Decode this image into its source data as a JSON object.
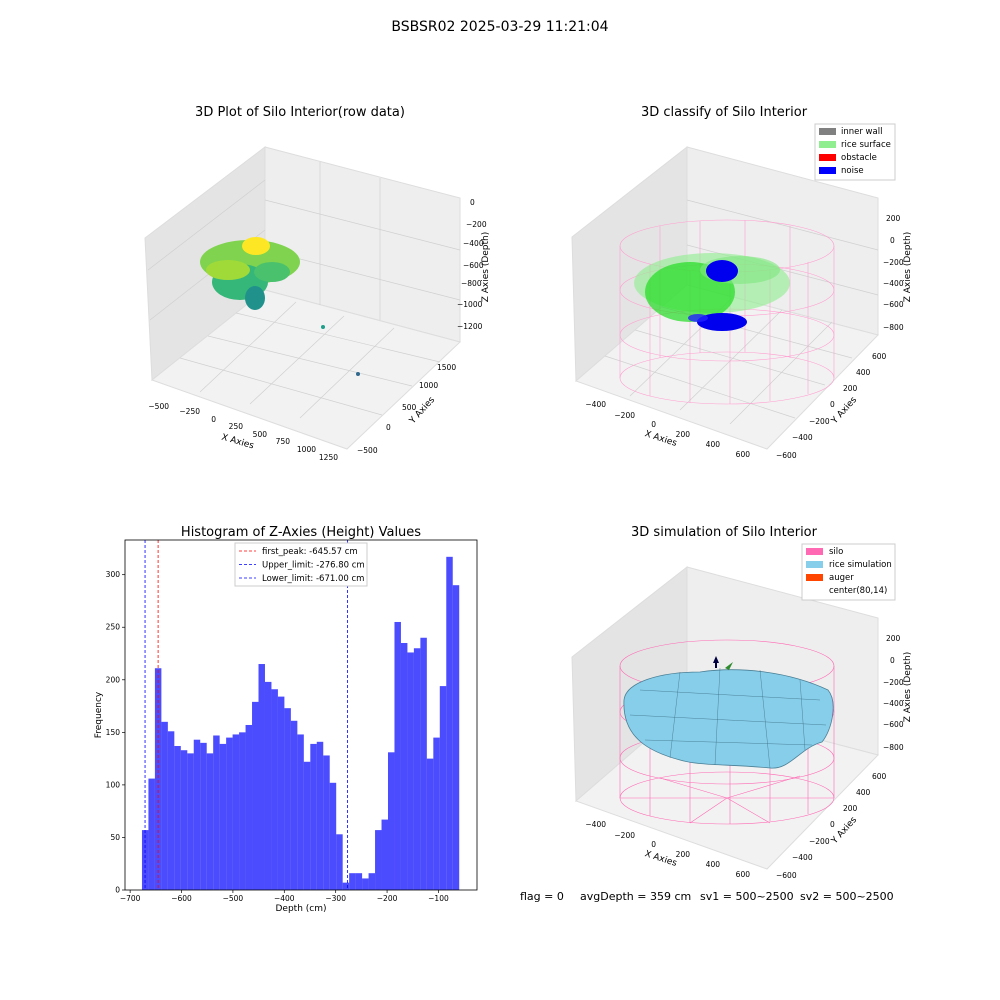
{
  "figure": {
    "suptitle": "BSBSR02 2025-03-29 11:21:04",
    "status": {
      "flag": "flag = 0",
      "avg_depth": "avgDepth = 359 cm",
      "sv1": "sv1 = 500~2500",
      "sv2": "sv2 = 500~2500"
    }
  },
  "panels": {
    "raw": {
      "title": "3D Plot of Silo Interior(row data)",
      "xlabel": "X Axies",
      "ylabel": "Y Axies",
      "zlabel": "Z Axies (Depth)",
      "xticks": [
        "−500",
        "−250",
        "0",
        "250",
        "500",
        "750",
        "1000",
        "1250"
      ],
      "yticks": [
        "−500",
        "0",
        "500",
        "1000",
        "1500"
      ],
      "zticks": [
        "0",
        "−200",
        "−400",
        "−600",
        "−800",
        "−1000",
        "−1200"
      ]
    },
    "classify": {
      "title": "3D classify of Silo Interior",
      "xlabel": "X Axies",
      "ylabel": "Y Axies",
      "zlabel": "Z Axies (Depth)",
      "xticks": [
        "−400",
        "−200",
        "0",
        "200",
        "400",
        "600"
      ],
      "yticks": [
        "−600",
        "−400",
        "−200",
        "0",
        "200",
        "400",
        "600"
      ],
      "zticks": [
        "200",
        "0",
        "−200",
        "−400",
        "−600",
        "−800"
      ],
      "legend": [
        {
          "label": "inner wall",
          "color": "#808080"
        },
        {
          "label": "rice surface",
          "color": "#90ee90"
        },
        {
          "label": "obstacle",
          "color": "#ff0000"
        },
        {
          "label": "noise",
          "color": "#0000ff"
        }
      ]
    },
    "simulation": {
      "title": "3D simulation of Silo Interior",
      "xlabel": "X Axies",
      "ylabel": "Y Axies",
      "zlabel": "Z Axies (Depth)",
      "xticks": [
        "−400",
        "−200",
        "0",
        "200",
        "400",
        "600"
      ],
      "yticks": [
        "−600",
        "−400",
        "−200",
        "0",
        "200",
        "400",
        "600"
      ],
      "zticks": [
        "200",
        "0",
        "−200",
        "−400",
        "−600",
        "−800"
      ],
      "legend": [
        {
          "label": "silo",
          "color": "#ff69b4"
        },
        {
          "label": "rice simulation",
          "color": "#87ceeb"
        },
        {
          "label": "auger",
          "color": "#ff4500"
        },
        {
          "label": "center(80,14)",
          "color": "#ffffff"
        }
      ]
    }
  },
  "chart_data": {
    "type": "bar",
    "title": "Histogram of Z-Axies (Height) Values",
    "xlabel": "Depth (cm)",
    "ylabel": "Frequency",
    "xlim": [
      -710,
      -25
    ],
    "ylim": [
      0,
      333
    ],
    "xticks": [
      -700,
      -600,
      -500,
      -400,
      -300,
      -200,
      -100
    ],
    "xtick_labels": [
      "−700",
      "−600",
      "−500",
      "−400",
      "−300",
      "−200",
      "−100"
    ],
    "yticks": [
      0,
      50,
      100,
      150,
      200,
      250,
      300
    ],
    "bar_color": "#0000ff",
    "bins_start": -677,
    "bin_width": 12.6,
    "values": [
      57,
      106,
      211,
      160,
      151,
      137,
      133,
      130,
      143,
      140,
      130,
      147,
      139,
      145,
      148,
      150,
      157,
      179,
      215,
      198,
      191,
      184,
      173,
      161,
      148,
      122,
      139,
      141,
      128,
      102,
      53,
      7,
      16,
      16,
      11,
      16,
      57,
      67,
      131,
      255,
      235,
      226,
      230,
      240,
      125,
      145,
      194,
      317,
      290
    ],
    "lines": [
      {
        "label": "first_peak: -645.57 cm",
        "x": -645.57,
        "color": "#ff0000"
      },
      {
        "label": "Upper_limit: -276.80 cm",
        "x": -276.8,
        "color": "#0000ff"
      },
      {
        "label": "Lower_limit: -671.00 cm",
        "x": -671.0,
        "color": "#0000ff"
      }
    ],
    "legend_position": "upper center"
  }
}
